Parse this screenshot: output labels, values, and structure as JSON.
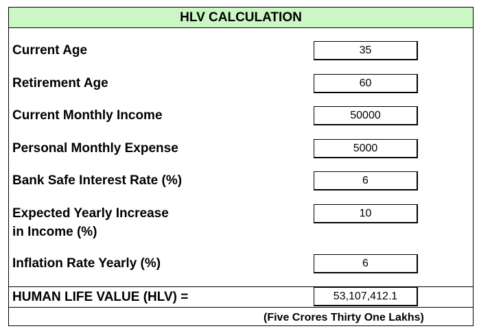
{
  "title": "HLV CALCULATION",
  "fields": [
    {
      "label": "Current Age",
      "value": "35"
    },
    {
      "label": "Retirement Age",
      "value": "60"
    },
    {
      "label": "Current Monthly Income",
      "value": "50000"
    },
    {
      "label": "Personal Monthly Expense",
      "value": "5000"
    },
    {
      "label": "Bank Safe Interest Rate (%)",
      "value": "6"
    },
    {
      "label_line1": "Expected Yearly Increase",
      "label_line2": "in Income (%)",
      "value": "10"
    },
    {
      "label": "Inflation Rate Yearly (%)",
      "value": "6"
    }
  ],
  "result": {
    "label": "HUMAN LIFE VALUE (HLV) =",
    "value": "53,107,412.1",
    "in_words": "(Five Crores Thirty One Lakhs)"
  },
  "colors": {
    "title_background": "#cbf7c4",
    "border": "#000000"
  }
}
